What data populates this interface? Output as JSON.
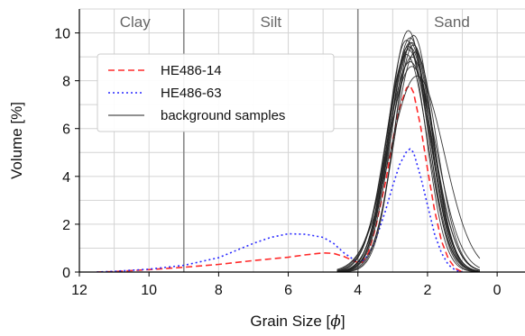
{
  "chart_data": {
    "type": "line",
    "xlabel": "Grain Size [φ]",
    "xlabel_prefix": "Grain Size [",
    "xlabel_symbol": "ϕ",
    "xlabel_suffix": "]",
    "ylabel": "Volume [%]",
    "xlim": [
      12,
      -0.8
    ],
    "ylim": [
      0,
      11
    ],
    "x_reversed": true,
    "grid": true,
    "x_ticks": [
      12,
      10,
      8,
      6,
      4,
      2,
      0
    ],
    "y_ticks": [
      0,
      2,
      4,
      6,
      8,
      10
    ],
    "x_tick_labels": [
      "12",
      "10",
      "8",
      "6",
      "4",
      "2",
      "0"
    ],
    "y_tick_labels": [
      "0",
      "2",
      "4",
      "6",
      "8",
      "10"
    ],
    "region_boundaries": [
      9,
      4
    ],
    "regions": [
      {
        "label": "Clay",
        "x": 10.4
      },
      {
        "label": "Silt",
        "x": 6.5
      },
      {
        "label": "Sand",
        "x": 1.3
      }
    ],
    "legend_position": "upper-left",
    "legend": [
      {
        "label": "HE486-14",
        "color": "#ff2a2a",
        "style": "dashed"
      },
      {
        "label": "HE486-63",
        "color": "#2a2aff",
        "style": "dotted"
      },
      {
        "label": "background samples",
        "color": "#222222",
        "style": "solid"
      }
    ],
    "series": [
      {
        "name": "HE486-14",
        "color": "#ff2a2a",
        "style": "dashed",
        "x": [
          11.5,
          11.0,
          10.0,
          9.0,
          8.0,
          7.0,
          6.0,
          5.5,
          5.0,
          4.7,
          4.4,
          4.1,
          3.9,
          3.7,
          3.5,
          3.2,
          3.0,
          2.8,
          2.6,
          2.5,
          2.4,
          2.2,
          2.0,
          1.8,
          1.6,
          1.4,
          1.2,
          1.0
        ],
        "y": [
          0.0,
          0.02,
          0.1,
          0.2,
          0.32,
          0.48,
          0.62,
          0.72,
          0.8,
          0.78,
          0.65,
          0.45,
          0.35,
          0.8,
          1.8,
          3.8,
          5.5,
          6.9,
          7.7,
          7.8,
          7.5,
          6.1,
          4.3,
          2.6,
          1.3,
          0.55,
          0.15,
          0.0
        ]
      },
      {
        "name": "HE486-63",
        "color": "#2a2aff",
        "style": "dotted",
        "x": [
          11.5,
          11.0,
          10.0,
          9.0,
          8.0,
          7.5,
          7.0,
          6.5,
          6.0,
          5.5,
          5.0,
          4.7,
          4.4,
          4.1,
          3.9,
          3.7,
          3.5,
          3.2,
          3.0,
          2.8,
          2.6,
          2.5,
          2.4,
          2.2,
          2.0,
          1.8,
          1.6,
          1.4,
          1.2,
          1.0
        ],
        "y": [
          0.0,
          0.03,
          0.12,
          0.28,
          0.6,
          0.9,
          1.2,
          1.45,
          1.6,
          1.58,
          1.45,
          1.2,
          0.8,
          0.5,
          0.42,
          0.7,
          1.3,
          2.6,
          3.6,
          4.5,
          5.05,
          5.15,
          5.0,
          4.0,
          2.8,
          1.6,
          0.8,
          0.3,
          0.08,
          0.0
        ]
      },
      {
        "name": "background samples",
        "color": "#222222",
        "style": "solid",
        "members": [
          {
            "center": 2.55,
            "peak": 10.1,
            "width": 0.55
          },
          {
            "center": 2.5,
            "peak": 9.8,
            "width": 0.57
          },
          {
            "center": 2.45,
            "peak": 9.6,
            "width": 0.58
          },
          {
            "center": 2.5,
            "peak": 9.4,
            "width": 0.6
          },
          {
            "center": 2.4,
            "peak": 9.5,
            "width": 0.56
          },
          {
            "center": 2.6,
            "peak": 9.7,
            "width": 0.55
          },
          {
            "center": 2.35,
            "peak": 9.2,
            "width": 0.6
          },
          {
            "center": 2.55,
            "peak": 9.3,
            "width": 0.62
          },
          {
            "center": 2.45,
            "peak": 9.0,
            "width": 0.63
          },
          {
            "center": 2.5,
            "peak": 8.8,
            "width": 0.66
          },
          {
            "center": 2.5,
            "peak": 9.6,
            "width": 0.57
          },
          {
            "center": 2.4,
            "peak": 9.9,
            "width": 0.54
          },
          {
            "center": 2.6,
            "peak": 9.1,
            "width": 0.6
          },
          {
            "center": 2.45,
            "peak": 8.6,
            "width": 0.7
          },
          {
            "center": 2.3,
            "peak": 8.2,
            "width": 0.78
          },
          {
            "center": 2.55,
            "peak": 9.45,
            "width": 0.58
          }
        ]
      }
    ]
  }
}
